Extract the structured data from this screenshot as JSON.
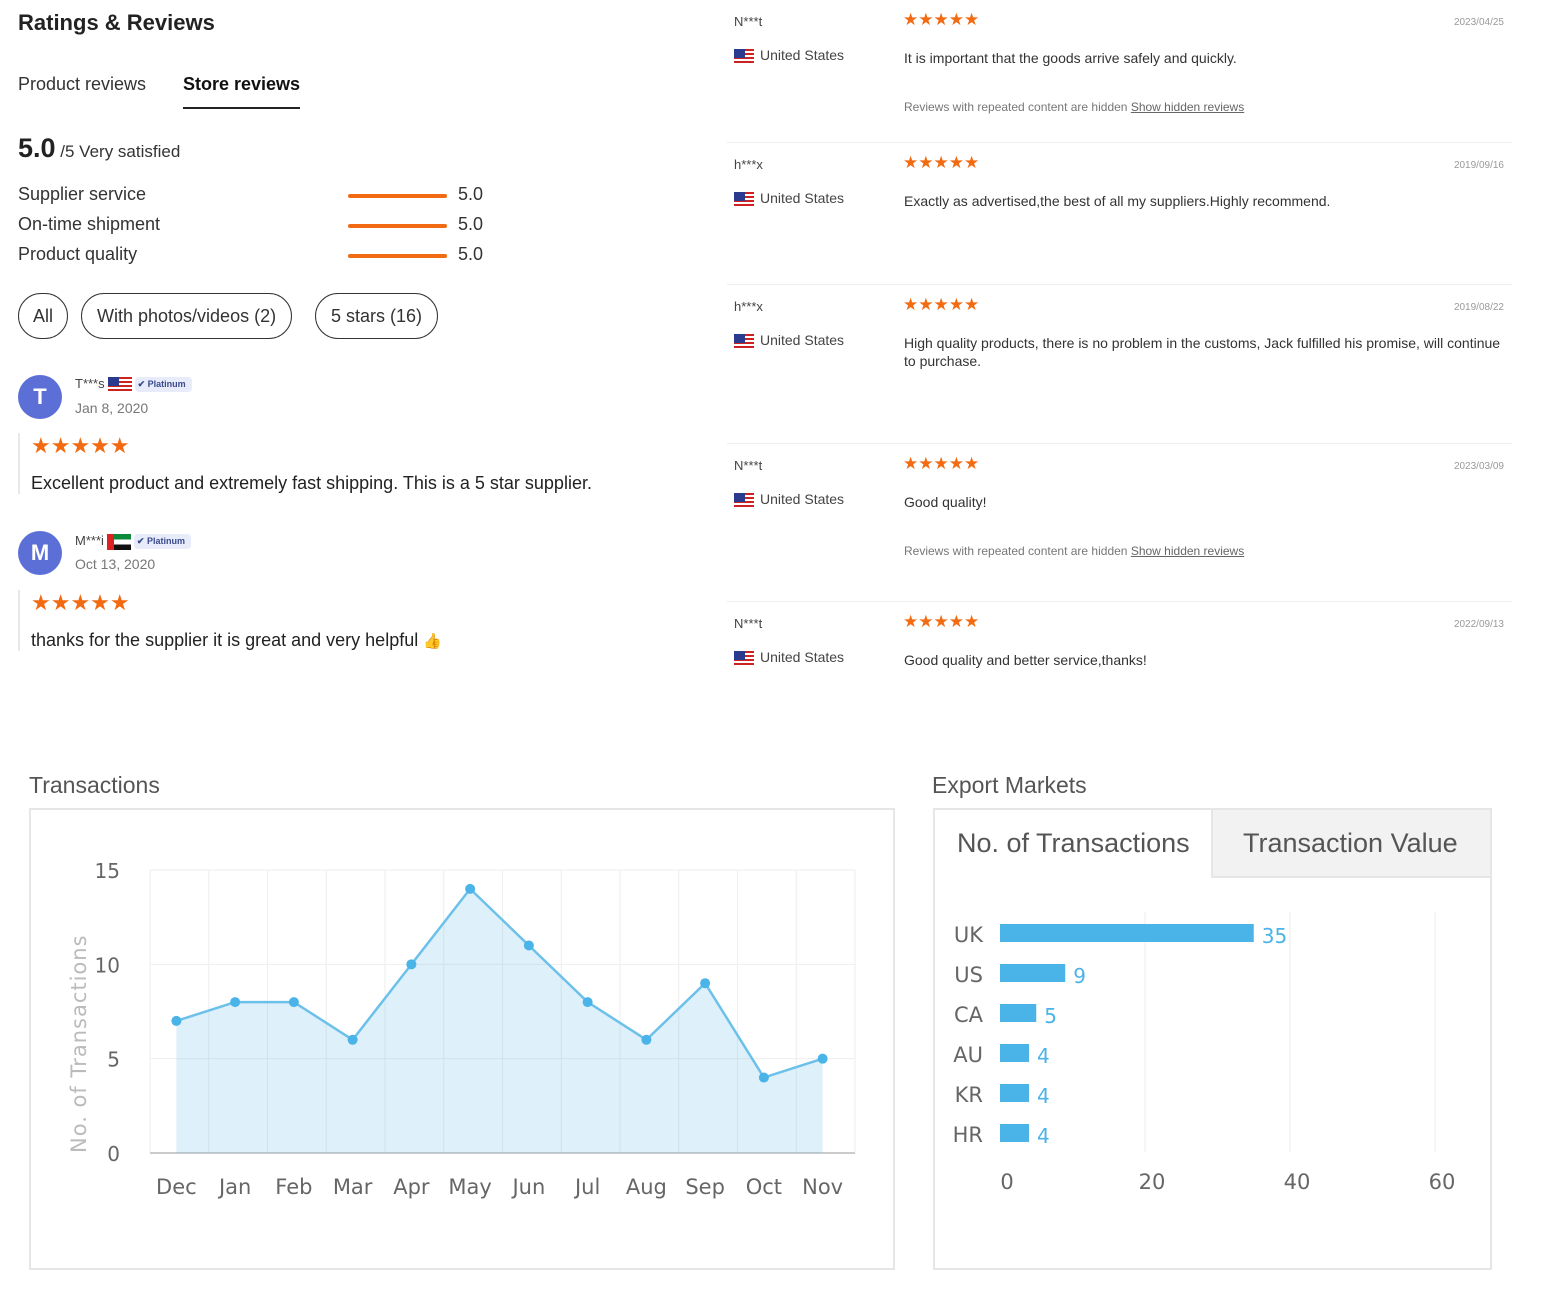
{
  "header": {
    "title": "Ratings & Reviews",
    "tabs": [
      "Product reviews",
      "Store reviews"
    ],
    "active_tab": "Store reviews"
  },
  "summary": {
    "score": "5.0",
    "suffix": "/5 Very satisfied",
    "metrics": [
      {
        "label": "Supplier service",
        "value": "5.0"
      },
      {
        "label": "On-time shipment",
        "value": "5.0"
      },
      {
        "label": "Product quality",
        "value": "5.0"
      }
    ]
  },
  "filters": [
    "All",
    "With photos/videos (2)",
    "5 stars (16)"
  ],
  "left_reviews": [
    {
      "initial": "T",
      "name": "T***s",
      "flag": "us",
      "badge": "Platinum",
      "date": "Jan 8, 2020",
      "stars": "★★★★★",
      "text": "Excellent product and extremely fast shipping. This is a 5 star supplier."
    },
    {
      "initial": "M",
      "name": "M***i",
      "flag": "ae",
      "badge": "Platinum",
      "date": "Oct 13, 2020",
      "stars": "★★★★★",
      "text": "thanks for the supplier it is great and very helpful",
      "emoji": "👍"
    }
  ],
  "right_reviews": [
    {
      "name": "N***t",
      "country": "United States",
      "stars": "★★★★★",
      "date": "2023/04/25",
      "text": "It is important that the goods arrive safely and quickly.",
      "hidden_note": "Reviews with repeated content are hidden",
      "hidden_link": "Show hidden reviews"
    },
    {
      "name": "h***x",
      "country": "United States",
      "stars": "★★★★★",
      "date": "2019/09/16",
      "text": "Exactly as advertised,the best of all my suppliers.Highly recommend."
    },
    {
      "name": "h***x",
      "country": "United States",
      "stars": "★★★★★",
      "date": "2019/08/22",
      "text": "High quality products, there is no problem in the customs, Jack fulfilled his promise, will continue to purchase."
    },
    {
      "name": "N***t",
      "country": "United States",
      "stars": "★★★★★",
      "date": "2023/03/09",
      "text": "Good quality!",
      "hidden_note": "Reviews with repeated content are hidden",
      "hidden_link": "Show hidden reviews"
    },
    {
      "name": "N***t",
      "country": "United States",
      "stars": "★★★★★",
      "date": "2022/09/13",
      "text": "Good quality and better service,thanks!"
    }
  ],
  "colors": {
    "accent": "#f26b12",
    "chart_blue": "#4ab3e8",
    "avatar": "#5b6fd6"
  },
  "transactions": {
    "title": "Transactions"
  },
  "export": {
    "title": "Export Markets",
    "tabs": [
      "No. of Transactions",
      "Transaction Value"
    ],
    "active_tab": "No. of Transactions"
  },
  "chart_data": [
    {
      "type": "area",
      "title": "",
      "ylabel": "No. of Transactions",
      "categories": [
        "Dec",
        "Jan",
        "Feb",
        "Mar",
        "Apr",
        "May",
        "Jun",
        "Jul",
        "Aug",
        "Sep",
        "Oct",
        "Nov"
      ],
      "values": [
        7,
        8,
        8,
        6,
        10,
        14,
        11,
        8,
        6,
        9,
        4,
        5
      ],
      "ylim": [
        0,
        15
      ],
      "yticks": [
        "0",
        "5",
        "10",
        "15"
      ],
      "grid": true
    },
    {
      "type": "bar",
      "orientation": "horizontal",
      "categories": [
        "UK",
        "US",
        "CA",
        "AU",
        "KR",
        "HR"
      ],
      "values": [
        35,
        9,
        5,
        4,
        4,
        4
      ],
      "xlim": [
        0,
        60
      ],
      "xticks": [
        "0",
        "20",
        "40",
        "60"
      ],
      "grid": true
    }
  ]
}
